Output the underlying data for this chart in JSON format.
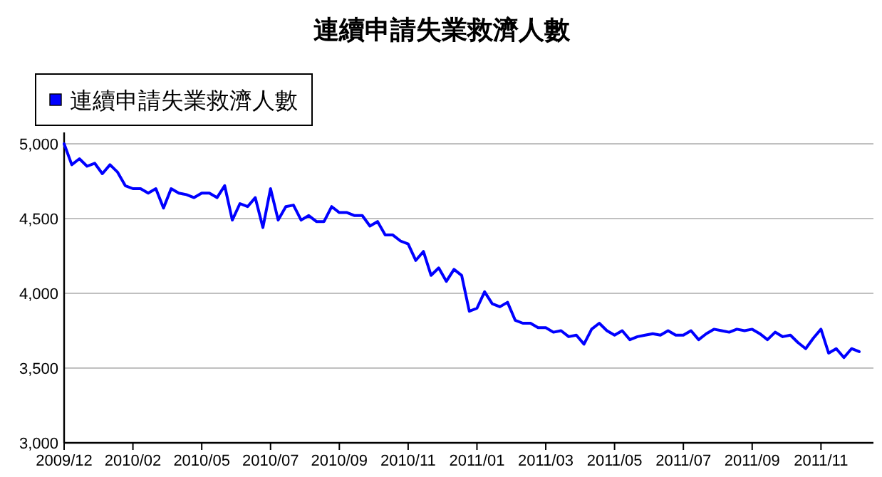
{
  "chart_data": {
    "type": "line",
    "title": "連續申請失業救濟人數",
    "legend": "top left",
    "grid": "y",
    "line_style": "solid",
    "marker": "none",
    "categories": [
      "2009/12",
      null,
      null,
      null,
      null,
      null,
      null,
      null,
      null,
      "2010/02",
      null,
      null,
      null,
      null,
      null,
      null,
      null,
      null,
      "2010/05",
      null,
      null,
      null,
      null,
      null,
      null,
      null,
      null,
      "2010/07",
      null,
      null,
      null,
      null,
      null,
      null,
      null,
      null,
      "2010/09",
      null,
      null,
      null,
      null,
      null,
      null,
      null,
      null,
      "2010/11",
      null,
      null,
      null,
      null,
      null,
      null,
      null,
      null,
      "2011/01",
      null,
      null,
      null,
      null,
      null,
      null,
      null,
      null,
      "2011/03",
      null,
      null,
      null,
      null,
      null,
      null,
      null,
      null,
      "2011/05",
      null,
      null,
      null,
      null,
      null,
      null,
      null,
      null,
      "2011/07",
      null,
      null,
      null,
      null,
      null,
      null,
      null,
      null,
      "2011/09",
      null,
      null,
      null,
      null,
      null,
      null,
      null,
      null,
      "2011/11",
      null,
      null,
      null,
      null,
      null
    ],
    "ylim": [
      3000,
      5000
    ],
    "yticks": [
      {
        "value": 3000,
        "label": "3,000"
      },
      {
        "value": 3500,
        "label": "3,500"
      },
      {
        "value": 4000,
        "label": "4,000"
      },
      {
        "value": 4500,
        "label": "4,500"
      },
      {
        "value": 5000,
        "label": "5,000"
      }
    ],
    "series": [
      {
        "name": "連續申請失業救濟人數",
        "color": "#0000ff",
        "values": [
          5000,
          4860,
          4900,
          4850,
          4870,
          4800,
          4860,
          4810,
          4720,
          4700,
          4700,
          4670,
          4700,
          4570,
          4700,
          4670,
          4660,
          4640,
          4670,
          4670,
          4640,
          4720,
          4490,
          4600,
          4580,
          4640,
          4440,
          4700,
          4490,
          4580,
          4590,
          4490,
          4520,
          4480,
          4480,
          4580,
          4540,
          4540,
          4520,
          4520,
          4450,
          4480,
          4390,
          4390,
          4350,
          4330,
          4220,
          4280,
          4120,
          4170,
          4080,
          4160,
          4120,
          3880,
          3900,
          4010,
          3930,
          3910,
          3940,
          3820,
          3800,
          3800,
          3770,
          3770,
          3740,
          3750,
          3710,
          3720,
          3660,
          3760,
          3800,
          3750,
          3720,
          3750,
          3690,
          3710,
          3720,
          3730,
          3720,
          3750,
          3720,
          3720,
          3750,
          3690,
          3730,
          3760,
          3750,
          3740,
          3760,
          3750,
          3760,
          3730,
          3690,
          3740,
          3710,
          3720,
          3670,
          3630,
          3700,
          3760,
          3600,
          3630,
          3570,
          3630,
          3610
        ]
      }
    ]
  }
}
